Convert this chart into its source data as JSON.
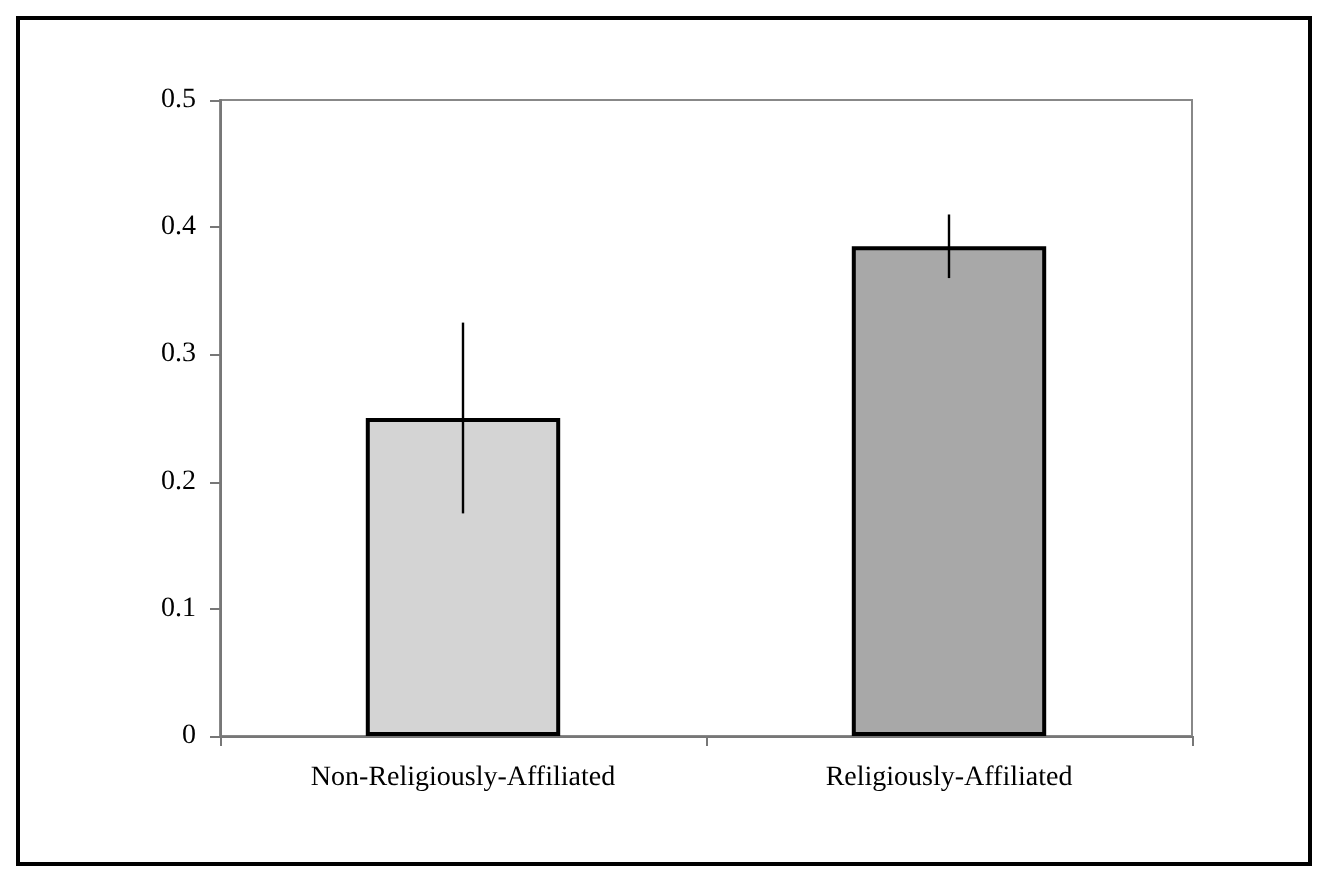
{
  "chart_data": {
    "type": "bar",
    "categories": [
      "Non-Religiously-Affiliated",
      "Religiously-Affiliated"
    ],
    "values": [
      0.25,
      0.385
    ],
    "colors": [
      "#d4d4d4",
      "#a8a8a8"
    ],
    "errors": [
      0.075,
      0.025
    ],
    "ylim": [
      0,
      0.5
    ],
    "yticks": [
      0,
      0.1,
      0.2,
      0.3,
      0.4,
      0.5
    ],
    "grid": false
  }
}
